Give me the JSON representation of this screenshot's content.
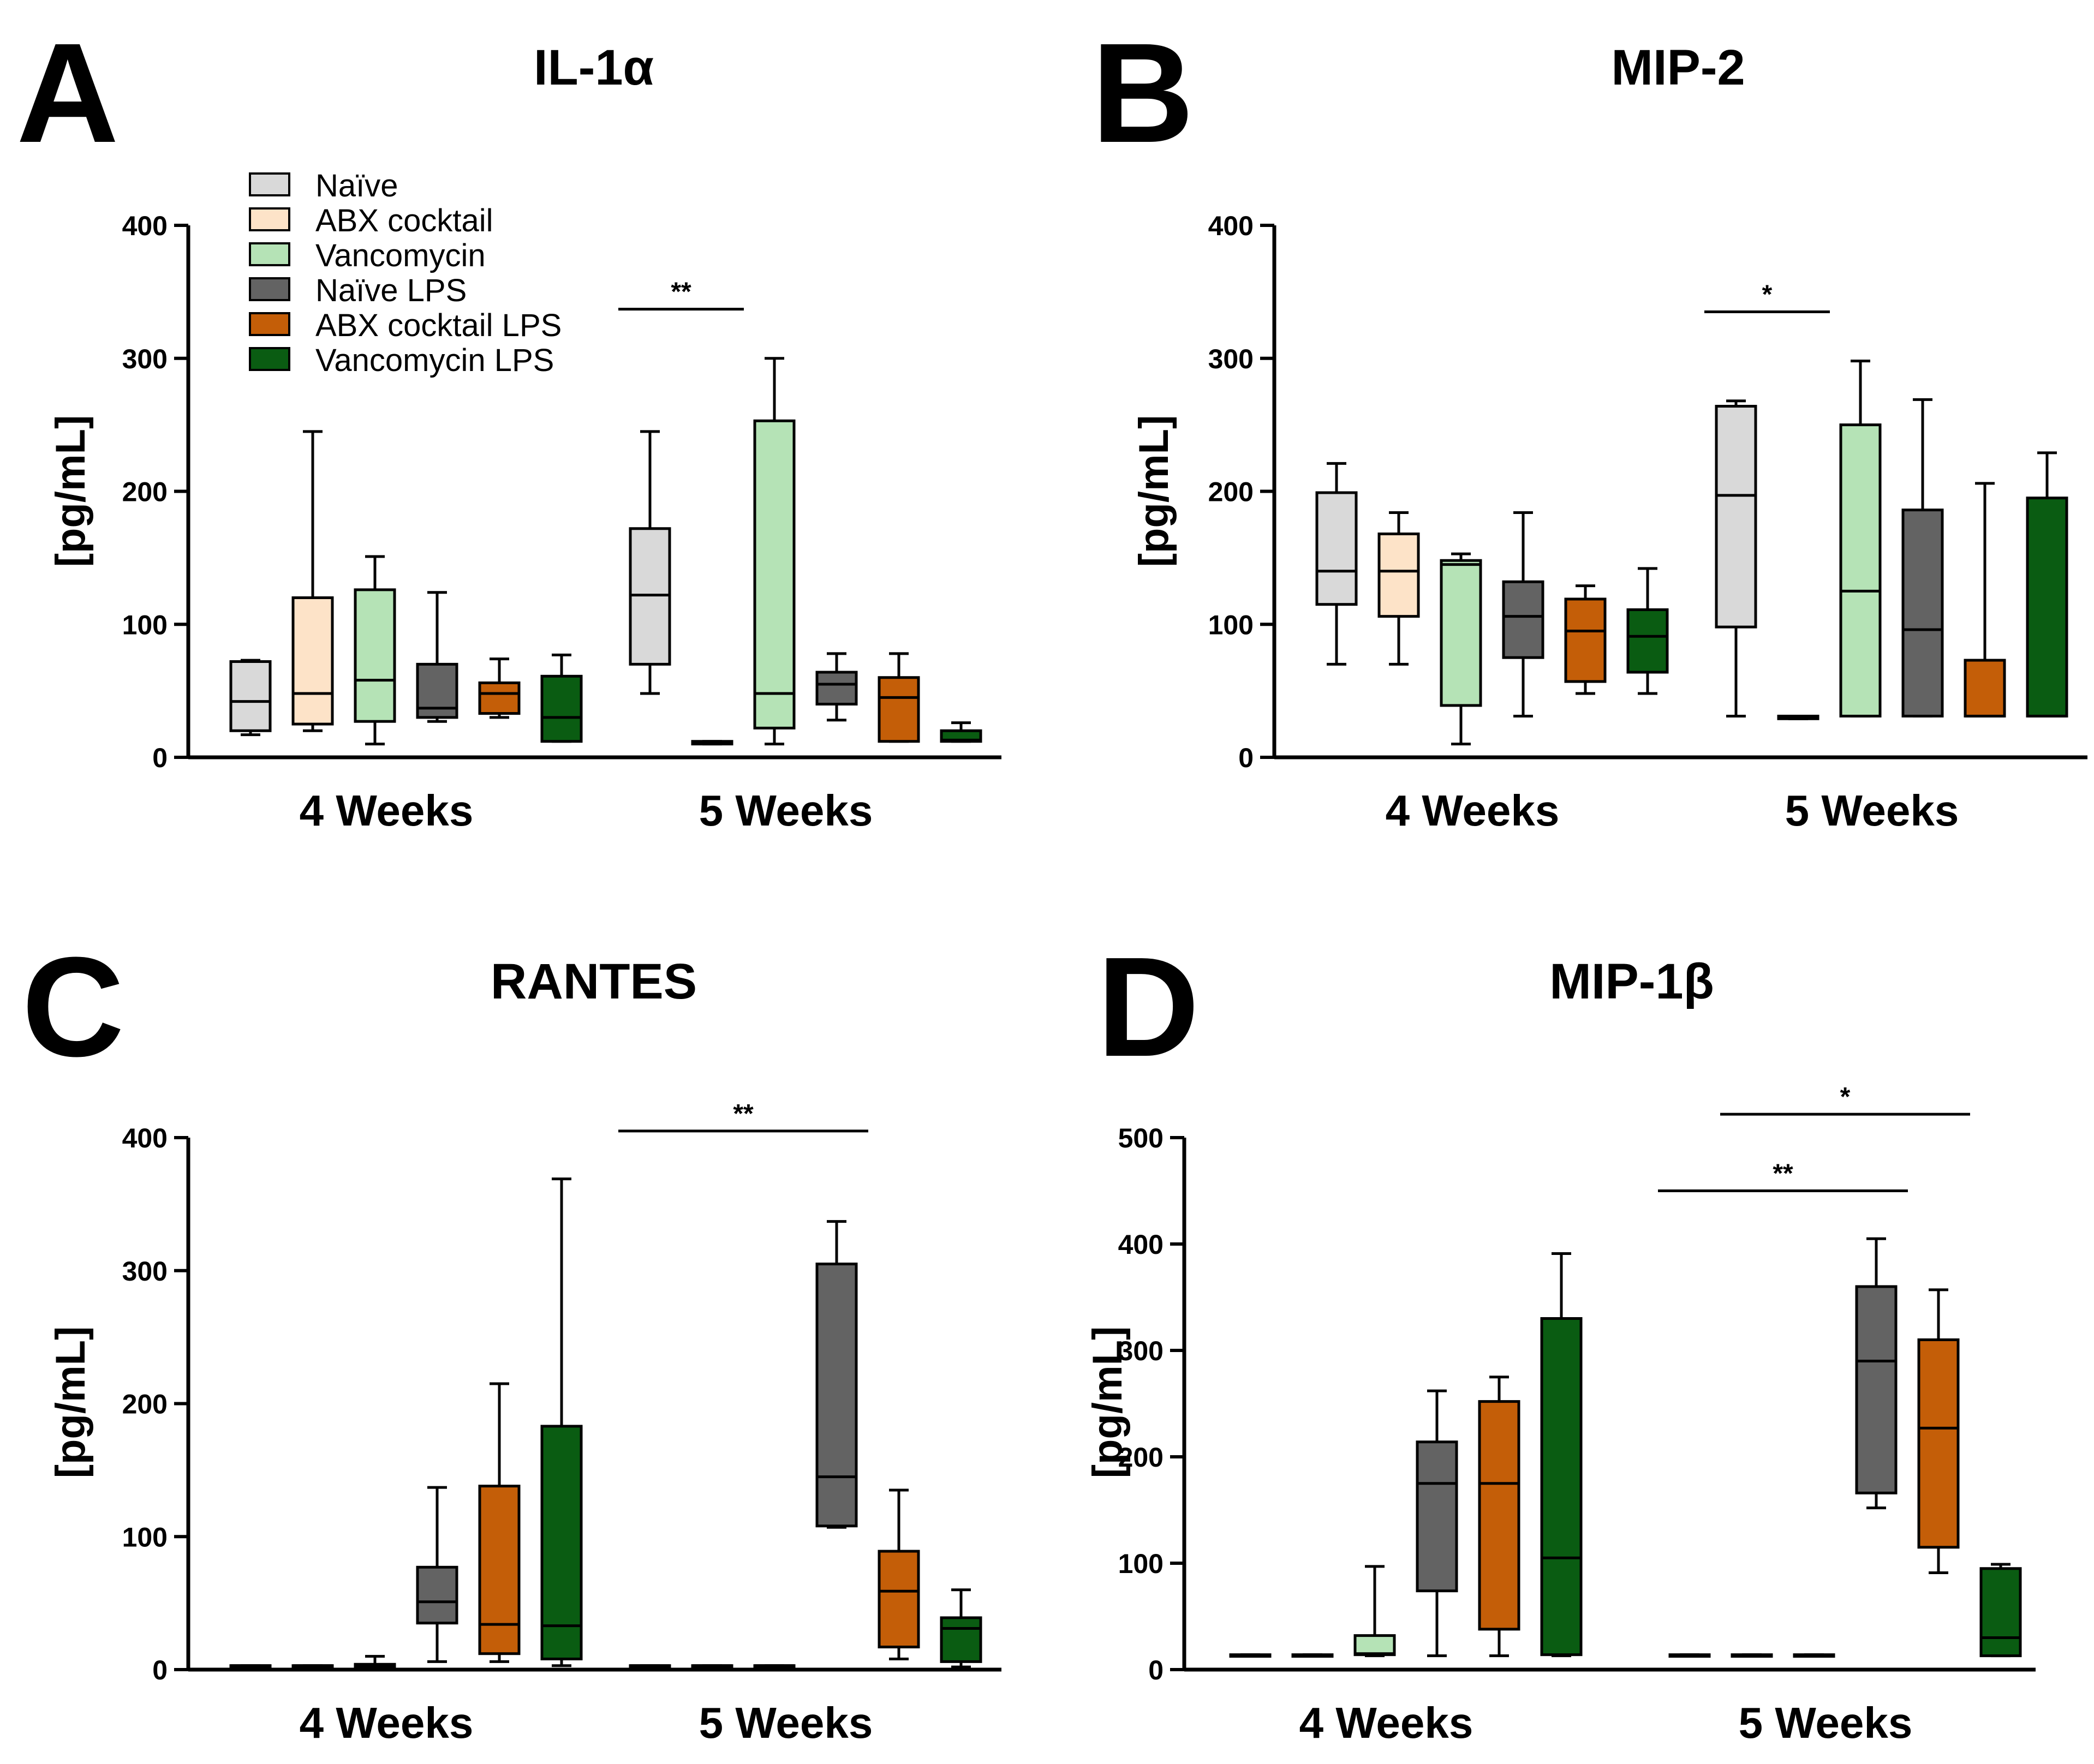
{
  "colors": {
    "Naïve": "#d9d9d9",
    "ABX cocktail": "#fde3c8",
    "Vancomycin": "#b5e3b6",
    "Naïve LPS": "#636363",
    "ABX cocktail LPS": "#c45e08",
    "Vancomycin LPS": "#0a5c12"
  },
  "legend": [
    "Naïve",
    "ABX cocktail",
    "Vancomycin",
    "Naïve LPS",
    "ABX cocktail LPS",
    "Vancomycin LPS"
  ],
  "chart_data": [
    {
      "panel": "A",
      "title": "IL-1α",
      "type": "box",
      "ylabel": "[pg/mL]",
      "ylim": [
        0,
        400
      ],
      "yticks": [
        0,
        100,
        200,
        300,
        400
      ],
      "categories": [
        "4 Weeks",
        "5 Weeks"
      ],
      "series": [
        {
          "name": "Naïve",
          "boxes": [
            [
              17,
              20,
              42,
              72,
              73
            ],
            [
              48,
              70,
              122,
              172,
              245
            ]
          ]
        },
        {
          "name": "ABX cocktail",
          "boxes": [
            [
              20,
              25,
              48,
              120,
              245
            ],
            [
              10,
              10,
              11,
              12,
              12
            ]
          ]
        },
        {
          "name": "Vancomycin",
          "boxes": [
            [
              10,
              27,
              58,
              126,
              151
            ],
            [
              10,
              22,
              48,
              253,
              300
            ]
          ]
        },
        {
          "name": "Naïve LPS",
          "boxes": [
            [
              27,
              30,
              37,
              70,
              124
            ],
            [
              28,
              40,
              55,
              64,
              78
            ]
          ]
        },
        {
          "name": "ABX cocktail LPS",
          "boxes": [
            [
              30,
              33,
              48,
              56,
              74
            ],
            [
              12,
              12,
              45,
              60,
              78
            ]
          ]
        },
        {
          "name": "Vancomycin LPS",
          "boxes": [
            [
              12,
              12,
              30,
              61,
              77
            ],
            [
              12,
              12,
              13,
              20,
              26
            ]
          ]
        }
      ],
      "significance": [
        {
          "label": "**",
          "group": 1,
          "from": 0,
          "to": 1,
          "y": 337
        }
      ]
    },
    {
      "panel": "B",
      "title": "MIP-2",
      "type": "box",
      "ylabel": "[pg/mL]",
      "ylim": [
        0,
        400
      ],
      "yticks": [
        0,
        100,
        200,
        300,
        400
      ],
      "categories": [
        "4 Weeks",
        "5 Weeks"
      ],
      "series": [
        {
          "name": "Naïve",
          "boxes": [
            [
              70,
              115,
              140,
              199,
              221
            ],
            [
              31,
              98,
              197,
              264,
              268
            ]
          ]
        },
        {
          "name": "ABX cocktail",
          "boxes": [
            [
              70,
              106,
              140,
              168,
              184
            ],
            [
              29,
              29,
              30,
              31,
              31
            ]
          ]
        },
        {
          "name": "Vancomycin",
          "boxes": [
            [
              10,
              39,
              145,
              148,
              153
            ],
            [
              31,
              31,
              125,
              250,
              298
            ]
          ]
        },
        {
          "name": "Naïve LPS",
          "boxes": [
            [
              31,
              75,
              106,
              132,
              184
            ],
            [
              31,
              31,
              96,
              186,
              269
            ]
          ]
        },
        {
          "name": "ABX cocktail LPS",
          "boxes": [
            [
              48,
              57,
              95,
              119,
              129
            ],
            [
              31,
              31,
              31,
              73,
              206
            ]
          ]
        },
        {
          "name": "Vancomycin LPS",
          "boxes": [
            [
              48,
              64,
              91,
              111,
              142
            ],
            [
              31,
              31,
              31,
              195,
              229
            ]
          ]
        }
      ],
      "significance": [
        {
          "label": "*",
          "group": 1,
          "from": 0,
          "to": 1,
          "y": 335
        }
      ]
    },
    {
      "panel": "C",
      "title": "RANTES",
      "type": "box",
      "ylabel": "[pg/mL]",
      "ylim": [
        0,
        400
      ],
      "yticks": [
        0,
        100,
        200,
        300,
        400
      ],
      "categories": [
        "4 Weeks",
        "5 Weeks"
      ],
      "series": [
        {
          "name": "Naïve",
          "boxes": [
            [
              2,
              2,
              3,
              3,
              3
            ],
            [
              2,
              2,
              3,
              3,
              3
            ]
          ]
        },
        {
          "name": "ABX cocktail",
          "boxes": [
            [
              2,
              2,
              3,
              3,
              3
            ],
            [
              2,
              2,
              3,
              3,
              3
            ]
          ]
        },
        {
          "name": "Vancomycin",
          "boxes": [
            [
              2,
              2,
              3,
              4,
              10
            ],
            [
              2,
              2,
              3,
              3,
              3
            ]
          ]
        },
        {
          "name": "Naïve LPS",
          "boxes": [
            [
              6,
              35,
              51,
              77,
              137
            ],
            [
              107,
              108,
              145,
              305,
              337
            ]
          ]
        },
        {
          "name": "ABX cocktail LPS",
          "boxes": [
            [
              6,
              12,
              34,
              138,
              215
            ],
            [
              8,
              17,
              59,
              89,
              135
            ]
          ]
        },
        {
          "name": "Vancomycin LPS",
          "boxes": [
            [
              3,
              8,
              33,
              183,
              369
            ],
            [
              2,
              6,
              31,
              39,
              60
            ]
          ]
        }
      ],
      "significance": [
        {
          "label": "**",
          "group": 1,
          "from": 0,
          "to": 3,
          "y": 405
        }
      ]
    },
    {
      "panel": "D",
      "title": "MIP-1β",
      "type": "box",
      "ylabel": "[pg/mL]",
      "ylim": [
        0,
        500
      ],
      "yticks": [
        0,
        100,
        200,
        300,
        400,
        500
      ],
      "categories": [
        "4 Weeks",
        "5 Weeks"
      ],
      "series": [
        {
          "name": "Naïve",
          "boxes": [
            [
              13,
              13,
              13,
              14,
              14
            ],
            [
              13,
              13,
              13,
              14,
              14
            ]
          ]
        },
        {
          "name": "ABX cocktail",
          "boxes": [
            [
              13,
              13,
              13,
              14,
              14
            ],
            [
              13,
              13,
              13,
              14,
              14
            ]
          ]
        },
        {
          "name": "Vancomycin",
          "boxes": [
            [
              13,
              14,
              15,
              32,
              97
            ],
            [
              13,
              13,
              13,
              14,
              14
            ]
          ]
        },
        {
          "name": "Naïve LPS",
          "boxes": [
            [
              13,
              74,
              175,
              214,
              262
            ],
            [
              152,
              166,
              290,
              360,
              405
            ]
          ]
        },
        {
          "name": "ABX cocktail LPS",
          "boxes": [
            [
              13,
              38,
              175,
              252,
              275
            ],
            [
              91,
              115,
              227,
              310,
              357
            ]
          ]
        },
        {
          "name": "Vancomycin LPS",
          "boxes": [
            [
              13,
              14,
              105,
              330,
              391
            ],
            [
              13,
              13,
              30,
              95,
              99
            ]
          ]
        }
      ],
      "significance": [
        {
          "label": "**",
          "group": 1,
          "from": 0,
          "to": 3,
          "y": 450
        },
        {
          "label": "*",
          "group": 1,
          "from": 1,
          "to": 4,
          "y": 522
        }
      ]
    }
  ]
}
